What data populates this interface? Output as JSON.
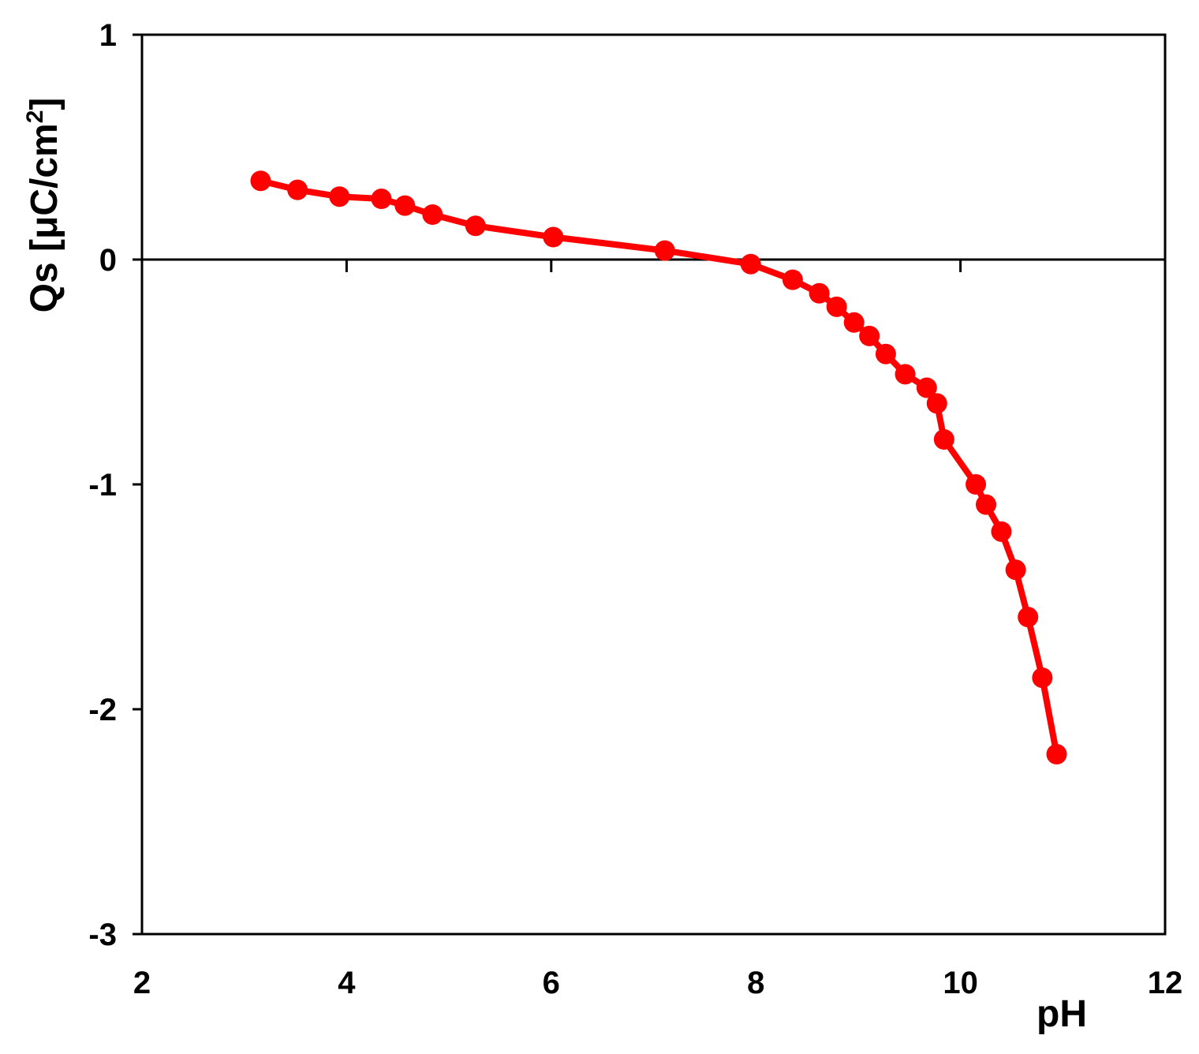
{
  "chart_data": {
    "type": "line",
    "title": "",
    "xlabel": "pH",
    "ylabel": {
      "main": "Qs [μC/cm",
      "superscript": "2",
      "close": "]"
    },
    "xlim": [
      2,
      12
    ],
    "ylim": [
      -3,
      1
    ],
    "x_ticks": [
      2,
      4,
      6,
      8,
      10,
      12
    ],
    "x_tick_labels": [
      "2",
      "4",
      "6",
      "8",
      "10",
      "12"
    ],
    "y_ticks": [
      1,
      0,
      -1,
      -2,
      -3
    ],
    "y_tick_labels": [
      "1",
      "0",
      "-1",
      "-2",
      "-3"
    ],
    "zero_line": true,
    "grid": false,
    "legend": "none",
    "series": [
      {
        "color": "#ff0000",
        "marker": "circle",
        "points": [
          [
            3.16,
            0.35
          ],
          [
            3.52,
            0.31
          ],
          [
            3.93,
            0.28
          ],
          [
            4.34,
            0.27
          ],
          [
            4.57,
            0.24
          ],
          [
            4.84,
            0.2
          ],
          [
            5.26,
            0.15
          ],
          [
            6.02,
            0.1
          ],
          [
            7.11,
            0.04
          ],
          [
            7.95,
            -0.02
          ],
          [
            8.36,
            -0.09
          ],
          [
            8.62,
            -0.15
          ],
          [
            8.79,
            -0.21
          ],
          [
            8.96,
            -0.28
          ],
          [
            9.11,
            -0.34
          ],
          [
            9.27,
            -0.42
          ],
          [
            9.46,
            -0.51
          ],
          [
            9.67,
            -0.57
          ],
          [
            9.77,
            -0.64
          ],
          [
            9.84,
            -0.8
          ],
          [
            10.15,
            -1.0
          ],
          [
            10.25,
            -1.09
          ],
          [
            10.4,
            -1.21
          ],
          [
            10.54,
            -1.38
          ],
          [
            10.66,
            -1.59
          ],
          [
            10.8,
            -1.86
          ],
          [
            10.94,
            -2.2
          ]
        ]
      }
    ]
  }
}
